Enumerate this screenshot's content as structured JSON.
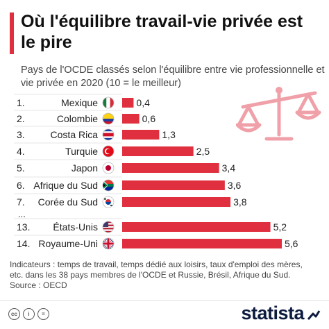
{
  "title": "Où l'équilibre travail-vie privée est le pire",
  "subtitle": "Pays de l'OCDE classés selon l'équilibre entre vie professionnelle et vie privée en 2020 (10 = le meilleur)",
  "chart_data": {
    "type": "bar",
    "orientation": "horizontal",
    "ranks": [
      "1.",
      "2.",
      "3.",
      "4.",
      "5.",
      "6.",
      "7.",
      "13.",
      "14."
    ],
    "categories": [
      "Mexique",
      "Colombie",
      "Costa Rica",
      "Turquie",
      "Japon",
      "Afrique du Sud",
      "Corée du Sud",
      "États-Unis",
      "Royaume-Uni"
    ],
    "values": [
      0.4,
      0.6,
      1.3,
      2.5,
      3.4,
      3.6,
      3.8,
      5.2,
      5.6
    ],
    "value_labels": [
      "0,4",
      "0,6",
      "1,3",
      "2,5",
      "3,4",
      "3,6",
      "3,8",
      "5,2",
      "5,6"
    ],
    "flags": [
      "mexico-flag-icon",
      "colombia-flag-icon",
      "costa-rica-flag-icon",
      "turkey-flag-icon",
      "japan-flag-icon",
      "south-africa-flag-icon",
      "south-korea-flag-icon",
      "usa-flag-icon",
      "uk-flag-icon"
    ],
    "gap_marker": "...",
    "bar_color": "#e0303f",
    "grid": false,
    "xlim": [
      0,
      5.6
    ]
  },
  "footnote": {
    "line1": "Indicateurs : temps de travail, temps dédié aux loisirs, taux d'emploi des mères,",
    "line2": "etc. dans les 38 pays membres de l'OCDE et Russie, Brésil, Afrique du Sud.",
    "source": "Source : OECD"
  },
  "footer": {
    "brand": "statista",
    "cc_icons": [
      "cc-icon",
      "by-icon",
      "nd-icon"
    ],
    "cc_labels": [
      "cc",
      "i",
      "="
    ]
  },
  "decoration": {
    "icon": "balance-scale-icon",
    "color": "#f0a0a8"
  }
}
